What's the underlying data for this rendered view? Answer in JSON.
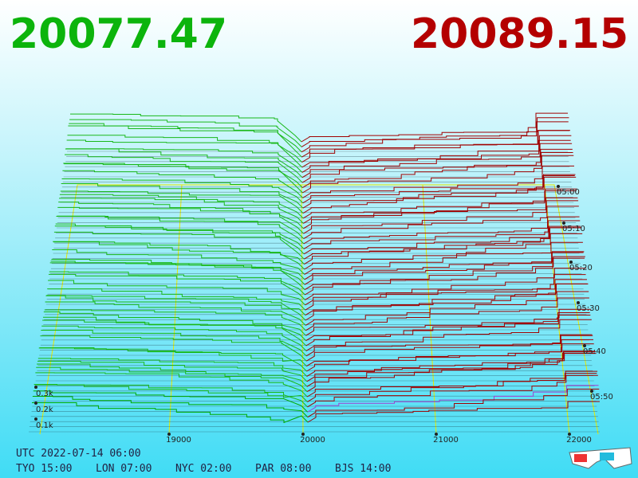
{
  "header": {
    "bid": "20077.47",
    "ask": "20089.15"
  },
  "price_axis": {
    "ticks": [
      "19000",
      "20000",
      "21000",
      "22000"
    ]
  },
  "depth_axis": {
    "ticks": [
      "0.1k",
      "0.2k",
      "0.3k"
    ]
  },
  "time_axis": {
    "ticks": [
      "05:00",
      "05:10",
      "05:20",
      "05:30",
      "05:40",
      "05:50"
    ]
  },
  "footer": {
    "utc": "UTC 2022-07-14 06:00",
    "cities": [
      "TYO 15:00",
      "LON 07:00",
      "NYC 02:00",
      "PAR 08:00",
      "BJS 14:00"
    ]
  }
}
